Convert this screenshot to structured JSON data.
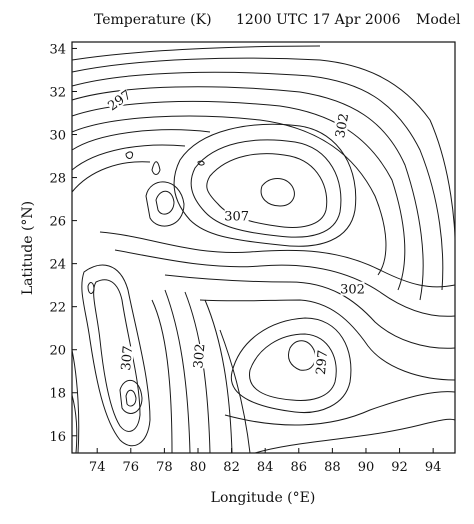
{
  "header": {
    "left": "Temperature (K)",
    "center": "1200 UTC 17 Apr 2006",
    "right": "Model"
  },
  "chart_data": {
    "type": "contour",
    "title": "",
    "xlabel": "Longitude (°E)",
    "ylabel": "Latitude (°N)",
    "xlim": [
      72.5,
      95.3
    ],
    "ylim": [
      15.2,
      34.3
    ],
    "x_ticks": [
      "74",
      "76",
      "78",
      "80",
      "82",
      "84",
      "86",
      "88",
      "90",
      "92",
      "94"
    ],
    "y_ticks": [
      "16",
      "18",
      "20",
      "22",
      "24",
      "26",
      "28",
      "30",
      "32",
      "34"
    ],
    "contour_labels": [
      {
        "text": "297",
        "lon": 75.4,
        "lat": 31.5,
        "angle": -35
      },
      {
        "text": "302",
        "lon": 88.7,
        "lat": 30.4,
        "angle": -80
      },
      {
        "text": "307",
        "lon": 82.3,
        "lat": 26.1,
        "angle": 0
      },
      {
        "text": "302",
        "lon": 89.2,
        "lat": 22.7,
        "angle": 0
      },
      {
        "text": "307",
        "lon": 75.9,
        "lat": 19.6,
        "angle": -85
      },
      {
        "text": "302",
        "lon": 80.2,
        "lat": 19.7,
        "angle": -85
      },
      {
        "text": "297",
        "lon": 87.5,
        "lat": 19.4,
        "angle": -85
      }
    ]
  }
}
